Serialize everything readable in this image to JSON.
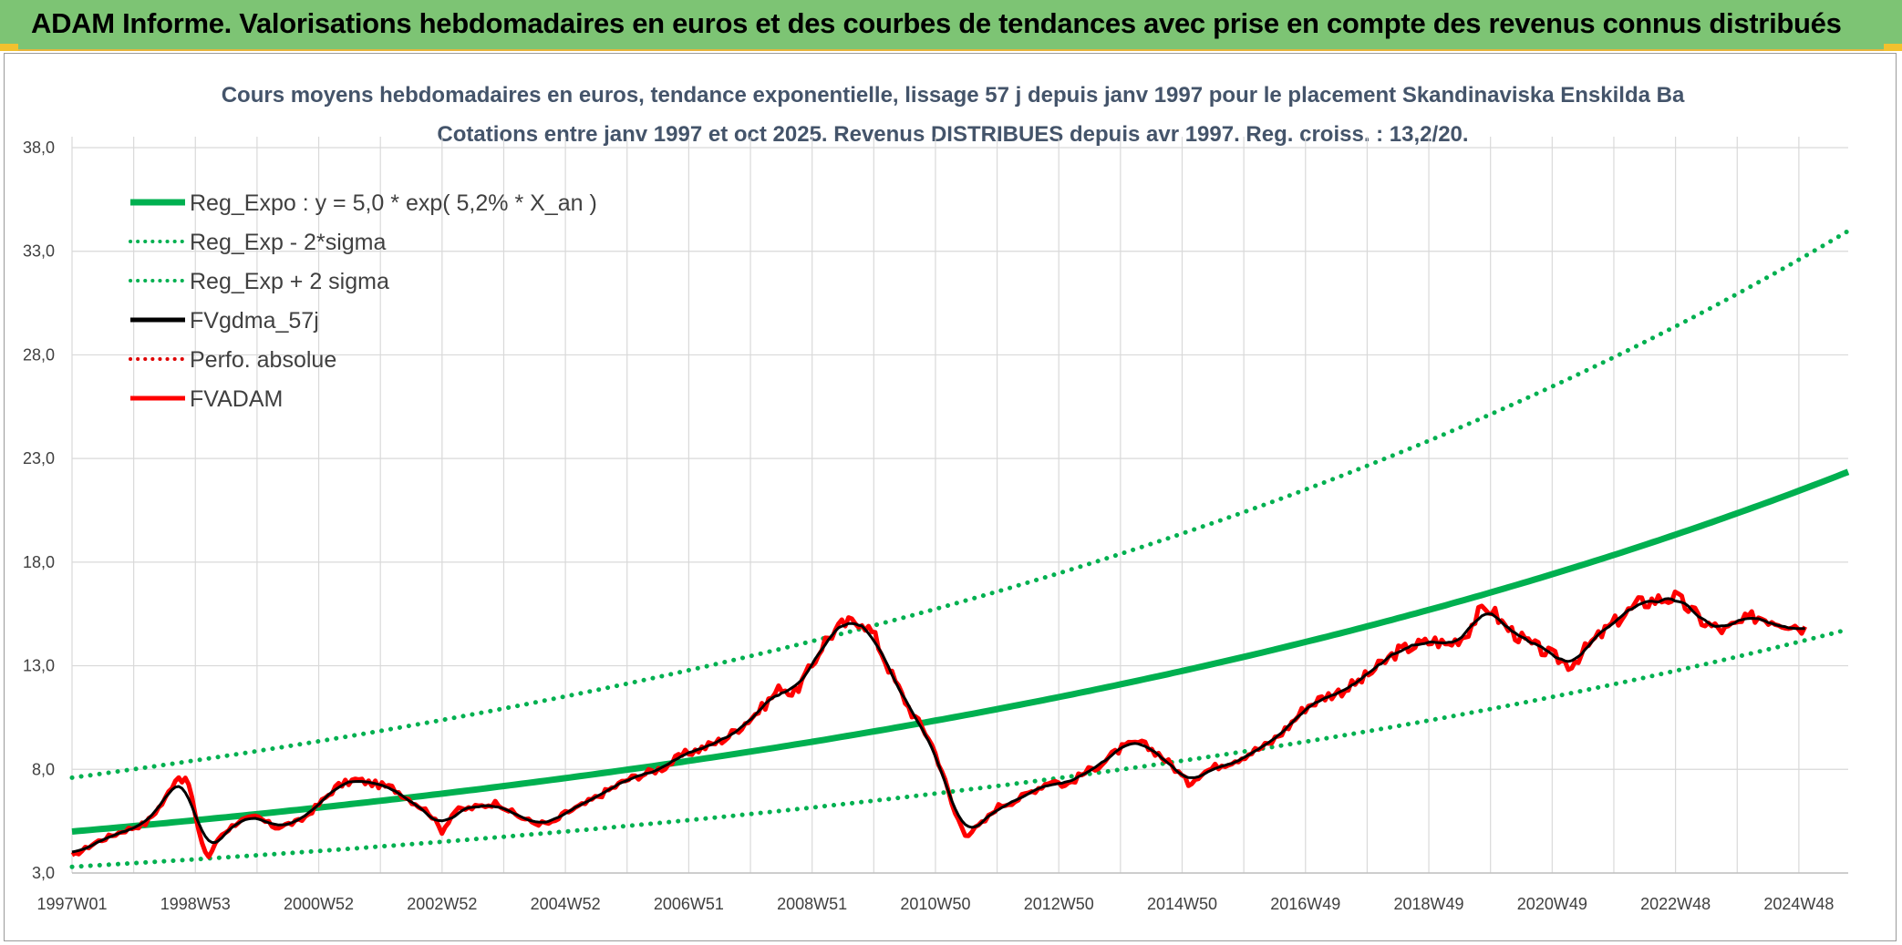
{
  "banner": {
    "title": "ADAM Informe. Valorisations hebdomadaires en euros et des courbes de tendances avec prise en compte des revenus connus distribués"
  },
  "chart_data": {
    "type": "line",
    "title": "Cours moyens hebdomadaires en euros, tendance exponentielle, lissage 57 j depuis janv 1997 pour le placement Skandinaviska Enskilda Ba",
    "subtitle": "Cotations entre janv 1997 et oct 2025. Revenus DISTRIBUES depuis avr 1997. Reg. croiss. : 13,2/20.",
    "xlabel": "",
    "ylabel": "",
    "xlim": [
      1997.0,
      2025.8
    ],
    "ylim": [
      3.0,
      38.0
    ],
    "yticks": [
      "3,0",
      "8,0",
      "13,0",
      "18,0",
      "23,0",
      "28,0",
      "33,0",
      "38,0"
    ],
    "xticks": [
      {
        "label": "1997W01",
        "x": 1997.0
      },
      {
        "label": "1998W53",
        "x": 1999.0
      },
      {
        "label": "2000W52",
        "x": 2001.0
      },
      {
        "label": "2002W52",
        "x": 2003.0
      },
      {
        "label": "2004W52",
        "x": 2005.0
      },
      {
        "label": "2006W51",
        "x": 2007.0
      },
      {
        "label": "2008W51",
        "x": 2009.0
      },
      {
        "label": "2010W50",
        "x": 2011.0
      },
      {
        "label": "2012W50",
        "x": 2013.0
      },
      {
        "label": "2014W50",
        "x": 2015.0
      },
      {
        "label": "2016W49",
        "x": 2017.0
      },
      {
        "label": "2018W49",
        "x": 2019.0
      },
      {
        "label": "2020W49",
        "x": 2021.0
      },
      {
        "label": "2022W48",
        "x": 2023.0
      },
      {
        "label": "2024W48",
        "x": 2025.0
      }
    ],
    "grid": true,
    "legend_position": "top-left",
    "regression": {
      "a": 5.0,
      "rate": 0.052,
      "lower_factor": 0.66,
      "upper_factor": 1.52
    },
    "series": [
      {
        "name": "Reg_Expo : y = 5,0 * exp( 5,2% *  X_an )",
        "color": "#00b050",
        "style": "solid"
      },
      {
        "name": "Reg_Exp - 2*sigma",
        "color": "#00b050",
        "style": "dotted"
      },
      {
        "name": "Reg_Exp + 2 sigma",
        "color": "#00b050",
        "style": "dotted"
      },
      {
        "name": "FVgdma_57j",
        "color": "#000000",
        "style": "solid"
      },
      {
        "name": "Perfo. absolue",
        "color": "#e00000",
        "style": "dotted"
      },
      {
        "name": "FVADAM",
        "color": "#ff0000",
        "style": "solid"
      }
    ],
    "fvadam_anchor_points": [
      [
        1997.0,
        3.8
      ],
      [
        1997.4,
        4.5
      ],
      [
        1997.8,
        5.0
      ],
      [
        1998.2,
        5.4
      ],
      [
        1998.5,
        6.5
      ],
      [
        1998.7,
        7.7
      ],
      [
        1998.9,
        7.3
      ],
      [
        1999.05,
        5.0
      ],
      [
        1999.2,
        3.7
      ],
      [
        1999.4,
        4.8
      ],
      [
        1999.7,
        5.5
      ],
      [
        2000.0,
        5.7
      ],
      [
        2000.3,
        5.2
      ],
      [
        2000.7,
        5.5
      ],
      [
        2001.0,
        6.3
      ],
      [
        2001.3,
        7.2
      ],
      [
        2001.6,
        7.5
      ],
      [
        2001.9,
        7.3
      ],
      [
        2002.2,
        7.1
      ],
      [
        2002.5,
        6.5
      ],
      [
        2002.8,
        5.9
      ],
      [
        2003.0,
        5.0
      ],
      [
        2003.2,
        6.0
      ],
      [
        2003.6,
        6.2
      ],
      [
        2003.9,
        6.4
      ],
      [
        2004.2,
        5.8
      ],
      [
        2004.5,
        5.4
      ],
      [
        2004.8,
        5.4
      ],
      [
        2005.0,
        5.9
      ],
      [
        2005.3,
        6.3
      ],
      [
        2005.7,
        7.0
      ],
      [
        2006.0,
        7.5
      ],
      [
        2006.3,
        7.8
      ],
      [
        2006.6,
        8.1
      ],
      [
        2006.9,
        8.7
      ],
      [
        2007.2,
        9.0
      ],
      [
        2007.6,
        9.5
      ],
      [
        2007.9,
        10.2
      ],
      [
        2008.2,
        11.0
      ],
      [
        2008.5,
        12.0
      ],
      [
        2008.7,
        11.6
      ],
      [
        2009.0,
        13.0
      ],
      [
        2009.2,
        14.2
      ],
      [
        2009.5,
        15.0
      ],
      [
        2009.8,
        15.2
      ],
      [
        2010.0,
        14.5
      ],
      [
        2010.3,
        12.5
      ],
      [
        2010.6,
        10.8
      ],
      [
        2010.9,
        9.5
      ],
      [
        2011.1,
        8.0
      ],
      [
        2011.3,
        6.0
      ],
      [
        2011.5,
        4.8
      ],
      [
        2011.8,
        5.5
      ],
      [
        2012.0,
        6.2
      ],
      [
        2012.3,
        6.5
      ],
      [
        2012.6,
        7.0
      ],
      [
        2012.9,
        7.5
      ],
      [
        2013.1,
        7.2
      ],
      [
        2013.4,
        7.8
      ],
      [
        2013.7,
        8.3
      ],
      [
        2014.0,
        9.0
      ],
      [
        2014.3,
        9.3
      ],
      [
        2014.6,
        8.8
      ],
      [
        2014.9,
        8.0
      ],
      [
        2015.1,
        7.3
      ],
      [
        2015.3,
        7.8
      ],
      [
        2015.6,
        8.2
      ],
      [
        2015.9,
        8.5
      ],
      [
        2016.1,
        8.8
      ],
      [
        2016.4,
        9.2
      ],
      [
        2016.7,
        10.0
      ],
      [
        2017.0,
        11.0
      ],
      [
        2017.3,
        11.5
      ],
      [
        2017.6,
        11.8
      ],
      [
        2017.9,
        12.3
      ],
      [
        2018.2,
        13.0
      ],
      [
        2018.5,
        13.7
      ],
      [
        2018.8,
        14.0
      ],
      [
        2019.1,
        14.2
      ],
      [
        2019.3,
        14.0
      ],
      [
        2019.6,
        14.5
      ],
      [
        2019.8,
        15.5
      ],
      [
        2020.0,
        15.8
      ],
      [
        2020.2,
        15.0
      ],
      [
        2020.5,
        14.3
      ],
      [
        2020.8,
        13.8
      ],
      [
        2021.0,
        13.5
      ],
      [
        2021.3,
        13.0
      ],
      [
        2021.6,
        14.0
      ],
      [
        2021.9,
        14.8
      ],
      [
        2022.1,
        15.3
      ],
      [
        2022.4,
        16.0
      ],
      [
        2022.7,
        16.2
      ],
      [
        2023.0,
        16.3
      ],
      [
        2023.2,
        15.8
      ],
      [
        2023.5,
        15.0
      ],
      [
        2023.8,
        14.7
      ],
      [
        2024.0,
        15.0
      ],
      [
        2024.3,
        15.4
      ],
      [
        2024.6,
        15.2
      ],
      [
        2024.9,
        15.0
      ],
      [
        2025.1,
        14.8
      ]
    ]
  }
}
